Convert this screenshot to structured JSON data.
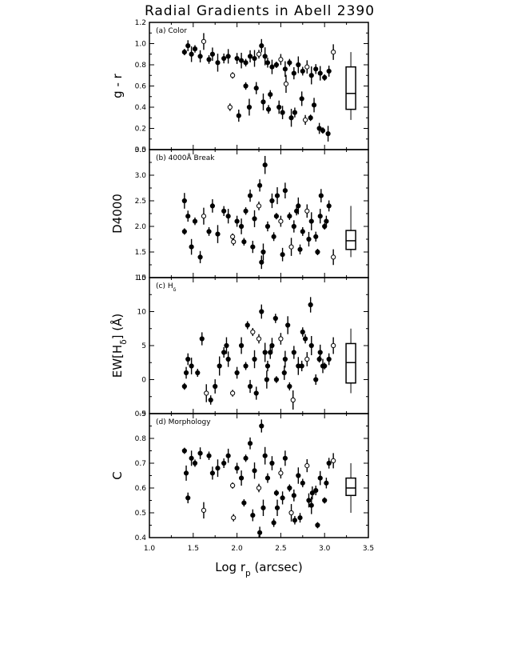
{
  "figure": {
    "title": "Radial Gradients in Abell 2390",
    "xlabel_main": "Log r",
    "xlabel_sub": "p",
    "xlabel_unit": "(arcsec)",
    "xlim": [
      1.0,
      3.5
    ],
    "xticks": [
      "1.0",
      "1.5",
      "2.0",
      "2.5",
      "3.0",
      "3.5"
    ]
  },
  "chart_data": [
    {
      "type": "scatter",
      "panel_label": "(a) Color",
      "ylabel": "g - r",
      "ylim": [
        0.0,
        1.2
      ],
      "yticks": [
        "0.0",
        "0.2",
        "0.4",
        "0.6",
        "0.8",
        "1.0",
        "1.2"
      ],
      "x": [
        1.4,
        1.44,
        1.48,
        1.52,
        1.58,
        1.62,
        1.68,
        1.72,
        1.78,
        1.85,
        1.9,
        1.95,
        2.0,
        2.05,
        2.1,
        2.15,
        2.2,
        2.25,
        2.28,
        2.32,
        2.35,
        2.4,
        2.45,
        2.5,
        2.55,
        2.6,
        2.65,
        2.7,
        2.75,
        2.8,
        2.85,
        2.9,
        2.95,
        3.0,
        3.05,
        3.1,
        2.1,
        2.22,
        2.3,
        2.38,
        2.48,
        2.56,
        2.66,
        2.74,
        2.84,
        2.94,
        3.04,
        1.92,
        2.02,
        2.14,
        2.36,
        2.52,
        2.62,
        2.78,
        2.88,
        2.98
      ],
      "y": [
        0.92,
        0.98,
        0.9,
        0.95,
        0.88,
        1.02,
        0.85,
        0.9,
        0.82,
        0.86,
        0.88,
        0.7,
        0.86,
        0.84,
        0.82,
        0.88,
        0.86,
        0.9,
        0.98,
        0.88,
        0.82,
        0.78,
        0.8,
        0.85,
        0.76,
        0.82,
        0.72,
        0.8,
        0.74,
        0.78,
        0.7,
        0.76,
        0.72,
        0.68,
        0.74,
        0.92,
        0.6,
        0.58,
        0.45,
        0.52,
        0.4,
        0.62,
        0.35,
        0.48,
        0.3,
        0.2,
        0.15,
        0.4,
        0.32,
        0.4,
        0.38,
        0.35,
        0.3,
        0.28,
        0.42,
        0.18
      ],
      "summary_box": {
        "x": 3.3,
        "median": 0.53,
        "q1": 0.38,
        "q3": 0.78,
        "low": 0.28,
        "high": 0.92
      }
    },
    {
      "type": "scatter",
      "panel_label": "(b) 4000Å Break",
      "ylabel": "D4000",
      "ylim": [
        1.0,
        3.5
      ],
      "yticks": [
        "1.0",
        "1.5",
        "2.0",
        "2.5",
        "3.0",
        "3.5"
      ],
      "x": [
        1.4,
        1.44,
        1.48,
        1.52,
        1.58,
        1.62,
        1.68,
        1.72,
        1.78,
        1.85,
        1.9,
        1.95,
        2.0,
        2.05,
        2.1,
        2.15,
        2.2,
        2.25,
        2.28,
        2.32,
        2.35,
        2.4,
        2.45,
        2.5,
        2.55,
        2.6,
        2.65,
        2.7,
        2.75,
        2.8,
        2.85,
        2.9,
        2.95,
        3.0,
        3.05,
        3.1,
        2.08,
        2.18,
        2.3,
        2.42,
        2.52,
        2.62,
        2.72,
        2.82,
        2.92,
        3.02,
        1.4,
        1.96,
        2.26,
        2.46,
        2.68,
        2.96
      ],
      "y": [
        1.9,
        2.2,
        1.6,
        2.1,
        1.4,
        2.2,
        1.9,
        2.4,
        1.85,
        2.3,
        2.2,
        1.8,
        2.1,
        2.0,
        2.3,
        2.6,
        2.15,
        2.4,
        1.3,
        3.2,
        2.0,
        2.5,
        2.2,
        2.1,
        2.7,
        2.2,
        2.0,
        2.4,
        1.9,
        2.3,
        2.1,
        1.8,
        2.2,
        2.0,
        2.4,
        1.4,
        1.7,
        1.6,
        1.5,
        1.8,
        1.45,
        1.6,
        1.55,
        1.75,
        1.5,
        2.1,
        2.5,
        1.7,
        2.8,
        2.6,
        2.3,
        2.6
      ],
      "summary_box": {
        "x": 3.3,
        "median": 1.72,
        "q1": 1.55,
        "q3": 1.92,
        "low": 1.4,
        "high": 2.4
      }
    },
    {
      "type": "scatter",
      "panel_label": "(c) H",
      "panel_label_sub": "δ",
      "ylabel": "EW[H",
      "ylabel_sub": "δ",
      "ylabel_end": "] (Å)",
      "ylim": [
        -5,
        15
      ],
      "yticks": [
        "-5",
        "0",
        "5",
        "10",
        "15"
      ],
      "x": [
        1.4,
        1.44,
        1.48,
        1.55,
        1.6,
        1.65,
        1.7,
        1.75,
        1.8,
        1.85,
        1.9,
        1.95,
        2.0,
        2.05,
        2.1,
        2.15,
        2.2,
        2.25,
        2.28,
        2.32,
        2.35,
        2.4,
        2.45,
        2.5,
        2.55,
        2.6,
        2.65,
        2.7,
        2.75,
        2.8,
        2.85,
        2.9,
        2.95,
        3.0,
        3.05,
        3.1,
        2.12,
        2.22,
        2.34,
        2.44,
        2.54,
        2.64,
        2.74,
        2.84,
        2.94,
        1.42,
        1.88,
        2.18,
        2.38,
        2.58,
        2.78,
        2.98
      ],
      "y": [
        -1,
        3,
        2,
        1,
        6,
        -2,
        -3,
        -1,
        2,
        4,
        3,
        -2,
        1,
        5,
        2,
        -1,
        3,
        6,
        10,
        4,
        2,
        5,
        0,
        6,
        3,
        -1,
        4,
        2,
        7,
        3,
        5,
        0,
        4,
        2,
        3,
        5,
        8,
        -2,
        0,
        9,
        1,
        -3,
        2,
        11,
        3,
        1,
        5,
        7,
        4,
        8,
        6,
        2
      ],
      "summary_box": {
        "x": 3.3,
        "median": 2.5,
        "q1": -0.5,
        "q3": 5.3,
        "low": -2.0,
        "high": 7.5
      }
    },
    {
      "type": "scatter",
      "panel_label": "(d) Morphology",
      "ylabel": "C",
      "ylim": [
        0.4,
        0.9
      ],
      "yticks": [
        "0.4",
        "0.5",
        "0.6",
        "0.7",
        "0.8",
        "0.9"
      ],
      "x": [
        1.4,
        1.44,
        1.48,
        1.52,
        1.58,
        1.62,
        1.68,
        1.72,
        1.78,
        1.85,
        1.9,
        1.95,
        2.0,
        2.05,
        2.1,
        2.15,
        2.2,
        2.25,
        2.28,
        2.32,
        2.35,
        2.4,
        2.45,
        2.5,
        2.55,
        2.6,
        2.65,
        2.7,
        2.75,
        2.8,
        2.85,
        2.9,
        2.95,
        3.0,
        3.05,
        3.1,
        2.08,
        2.18,
        2.3,
        2.42,
        2.52,
        2.62,
        2.72,
        2.82,
        2.92,
        3.02,
        1.42,
        1.96,
        2.26,
        2.46,
        2.66,
        2.86
      ],
      "y": [
        0.75,
        0.56,
        0.72,
        0.7,
        0.74,
        0.51,
        0.73,
        0.66,
        0.68,
        0.7,
        0.73,
        0.61,
        0.68,
        0.64,
        0.72,
        0.78,
        0.67,
        0.6,
        0.85,
        0.73,
        0.64,
        0.7,
        0.58,
        0.66,
        0.72,
        0.6,
        0.57,
        0.65,
        0.62,
        0.69,
        0.53,
        0.59,
        0.64,
        0.55,
        0.7,
        0.71,
        0.54,
        0.49,
        0.52,
        0.46,
        0.56,
        0.5,
        0.48,
        0.55,
        0.45,
        0.62,
        0.66,
        0.48,
        0.42,
        0.52,
        0.47,
        0.58
      ],
      "summary_box": {
        "x": 3.3,
        "median": 0.6,
        "q1": 0.57,
        "q3": 0.64,
        "low": 0.5,
        "high": 0.7
      }
    }
  ]
}
